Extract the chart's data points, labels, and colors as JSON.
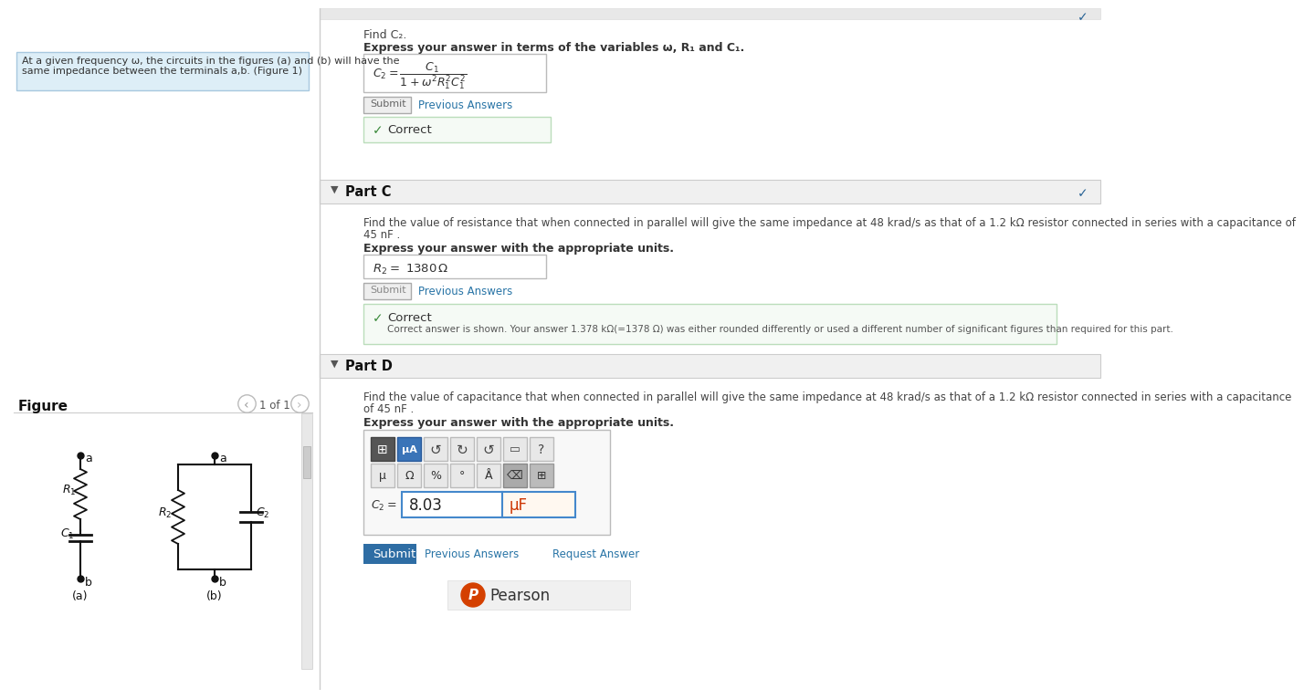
{
  "bg_color": "#ffffff",
  "left_panel_bg": "#ddeef7",
  "left_panel_border": "#a8c8df",
  "left_panel_text_line1": "At a given frequency ω, the circuits in the figures (a) and (b) will have the",
  "left_panel_text_line2": "same impedance between the terminals a,b. (Figure 1)",
  "figure_label": "Figure",
  "page_label": "1 of 1",
  "section_bg": "#f0f0f0",
  "section_border": "#cccccc",
  "correct_bg": "#f5faf5",
  "correct_border": "#bbddbb",
  "correct_color": "#2a7a2a",
  "partB_title": "Find C₂.",
  "partB_subtitle": "Express your answer in terms of the variables ω, R₁ and C₁.",
  "partB_correct": "Correct",
  "partC_header": "Part C",
  "partC_text1": "Find the value of resistance that when connected in parallel will give the same impedance at 48 krad/s as that of a 1.2 kΩ resistor connected in series with a capacitance of",
  "partC_text2": "45 nF .",
  "partC_subtitle": "Express your answer with the appropriate units.",
  "partC_correct": "Correct",
  "partC_correct_detail": "Correct answer is shown. Your answer 1.378 kΩ(=1378 Ω) was either rounded differently or used a different number of significant figures than required for this part.",
  "partD_header": "Part D",
  "partD_text1": "Find the value of capacitance that when connected in parallel will give the same impedance at 48 krad/s as that of a 1.2 kΩ resistor connected in series with a capacitance",
  "partD_text2": "of 45 nF .",
  "partD_subtitle": "Express your answer with the appropriate units.",
  "partD_answer_val": "8.03",
  "partD_answer_unit": "μF",
  "submit_btn_color": "#2e6da4",
  "submit_text_color": "#ffffff",
  "link_color": "#2874a6",
  "divider_color": "#cccccc",
  "input_border": "#aaaaaa",
  "pearson_color": "#d44000",
  "check_color": "#2a6496",
  "green_check": "#3a8a3a"
}
